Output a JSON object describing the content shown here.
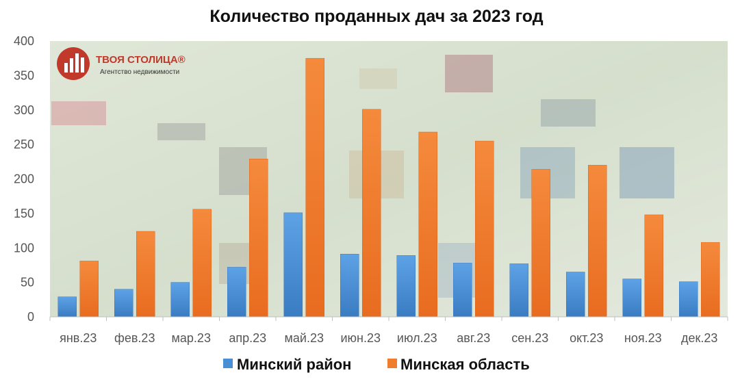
{
  "chart_data": {
    "type": "bar",
    "title": "Количество проданных дач за 2023 год",
    "categories": [
      "янв.23",
      "фев.23",
      "мар.23",
      "апр.23",
      "май.23",
      "июн.23",
      "июл.23",
      "авг.23",
      "сен.23",
      "окт.23",
      "ноя.23",
      "дек.23"
    ],
    "series": [
      {
        "name": "Минский район",
        "color": "#4a8fd6",
        "values": [
          29,
          40,
          50,
          72,
          151,
          91,
          89,
          78,
          77,
          65,
          55,
          51
        ]
      },
      {
        "name": "Минская область",
        "color": "#f07d2e",
        "values": [
          81,
          124,
          156,
          229,
          375,
          301,
          268,
          255,
          214,
          220,
          148,
          108
        ]
      }
    ],
    "ylim": [
      0,
      400
    ],
    "yticks": [
      0,
      50,
      100,
      150,
      200,
      250,
      300,
      350,
      400
    ],
    "grid": false,
    "legend_position": "bottom"
  },
  "logo": {
    "name": "ТВОЯ СТОЛИЦА®",
    "tagline": "Агентство недвижимости"
  }
}
